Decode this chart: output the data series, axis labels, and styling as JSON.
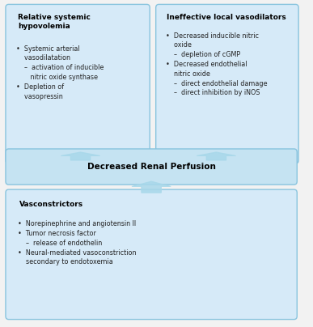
{
  "fig_bg": "#f2f2f2",
  "box_fill": "#d6eaf8",
  "box_edge": "#88c4de",
  "center_fill": "#c5e3f2",
  "arrow_color": "#7fc4dc",
  "arrow_fill": "#a8d8ea",
  "title_color": "#000000",
  "text_color": "#222222",
  "box_left_title": "Relative systemic\nhypovolemia",
  "box_left_body": "•  Systemic arterial\n    vasodilatation\n    –  activation of inducible\n       nitric oxide synthase\n•  Depletion of\n    vasopressin",
  "box_right_title": "Ineffective local vasodilators",
  "box_right_body": "•  Decreased inducible nitric\n    oxide\n    –  depletion of cGMP\n•  Decreased endothelial\n    nitric oxide\n    –  direct endothelial damage\n    –  direct inhibition by iNOS",
  "box_center_text": "Decreased Renal Perfusion",
  "box_bottom_title": "Vasconstrictors",
  "box_bottom_body": "•  Norepinephrine and angiotensin II\n•  Tumor necrosis factor\n    –  release of endothelin\n•  Neural-mediated vasoconstriction\n    secondary to endotoxemia"
}
